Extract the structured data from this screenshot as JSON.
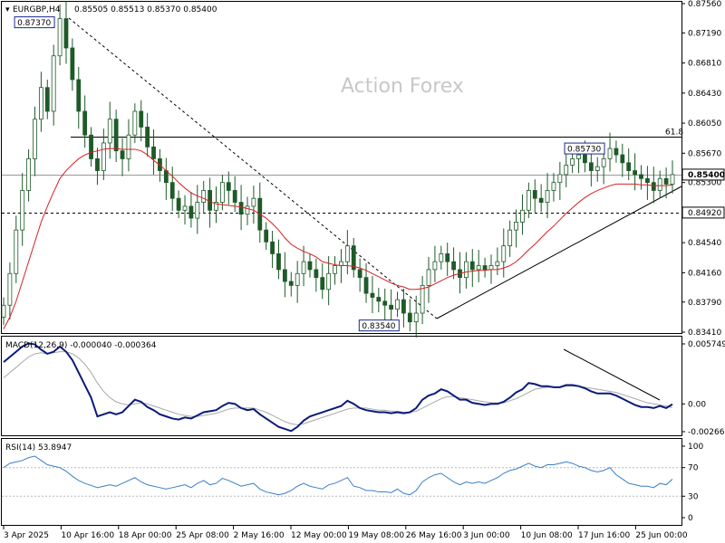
{
  "header": {
    "symbol": "EURGBP,H4",
    "ohlc": "0.85505 0.85513 0.85370 0.85400"
  },
  "watermark": "Action Forex",
  "colors": {
    "candle": "#1e5a28",
    "ma": "#d62020",
    "macd_line": "#0a1a7a",
    "macd_signal": "#a8a8a8",
    "rsi": "#3a7fc6",
    "trendline": "#000000",
    "grid": "#000000"
  },
  "chart_data": [
    {
      "type": "candlestick",
      "panel": "price",
      "symbol": "EURGBP",
      "timeframe": "H4",
      "ylim": [
        0.8341,
        0.8756
      ],
      "y_ticks": [
        "0.87560",
        "0.87190",
        "0.86810",
        "0.86430",
        "0.86050",
        "0.85670",
        "0.85300",
        "0.84920",
        "0.84540",
        "0.84160",
        "0.83790",
        "0.83410"
      ],
      "x_ticks": [
        "3 Apr 2025",
        "10 Apr 16:00",
        "18 Apr 00:00",
        "25 Apr 08:00",
        "2 May 16:00",
        "12 May 00:00",
        "19 May 08:00",
        "26 May 16:00",
        "3 Jun 00:00",
        "10 Jun 08:00",
        "17 Jun 16:00",
        "25 Jun 00:00"
      ],
      "current_price": "0.85400",
      "current_value": 0.854,
      "price_series": [
        0.8375,
        0.8415,
        0.847,
        0.852,
        0.856,
        0.861,
        0.865,
        0.862,
        0.869,
        0.8737,
        0.87,
        0.866,
        0.862,
        0.859,
        0.856,
        0.8545,
        0.858,
        0.861,
        0.857,
        0.856,
        0.859,
        0.862,
        0.86,
        0.8575,
        0.856,
        0.8545,
        0.853,
        0.851,
        0.8495,
        0.85,
        0.8485,
        0.8505,
        0.852,
        0.8495,
        0.8505,
        0.853,
        0.852,
        0.8505,
        0.849,
        0.85,
        0.851,
        0.847,
        0.8455,
        0.844,
        0.842,
        0.8405,
        0.84,
        0.8415,
        0.843,
        0.842,
        0.841,
        0.8395,
        0.8415,
        0.8425,
        0.843,
        0.845,
        0.842,
        0.841,
        0.839,
        0.8385,
        0.838,
        0.8375,
        0.837,
        0.8382,
        0.8365,
        0.8354,
        0.8365,
        0.84,
        0.842,
        0.843,
        0.844,
        0.843,
        0.842,
        0.841,
        0.843,
        0.842,
        0.8425,
        0.842,
        0.8425,
        0.843,
        0.845,
        0.847,
        0.848,
        0.8495,
        0.852,
        0.851,
        0.8505,
        0.852,
        0.853,
        0.854,
        0.8552,
        0.856,
        0.8565,
        0.8555,
        0.8545,
        0.855,
        0.856,
        0.8573,
        0.8565,
        0.8555,
        0.8545,
        0.854,
        0.8535,
        0.853,
        0.852,
        0.8535,
        0.8528,
        0.854
      ],
      "ma_series": [
        0.8345,
        0.836,
        0.838,
        0.8405,
        0.843,
        0.8455,
        0.848,
        0.85,
        0.8518,
        0.8535,
        0.8545,
        0.8553,
        0.856,
        0.8565,
        0.8568,
        0.857,
        0.8572,
        0.8573,
        0.8573,
        0.8572,
        0.8572,
        0.8572,
        0.857,
        0.8565,
        0.8558,
        0.8552,
        0.8545,
        0.8538,
        0.853,
        0.8523,
        0.8517,
        0.8513,
        0.851,
        0.8506,
        0.8503,
        0.8502,
        0.8501,
        0.85,
        0.8499,
        0.8497,
        0.8495,
        0.849,
        0.8485,
        0.8478,
        0.847,
        0.846,
        0.8452,
        0.8447,
        0.8443,
        0.844,
        0.8436,
        0.843,
        0.8428,
        0.8426,
        0.8425,
        0.8425,
        0.8424,
        0.8422,
        0.8419,
        0.8415,
        0.8411,
        0.8407,
        0.8403,
        0.84,
        0.8398,
        0.8395,
        0.8395,
        0.8396,
        0.8398,
        0.8402,
        0.8406,
        0.841,
        0.8413,
        0.8415,
        0.8417,
        0.8418,
        0.8419,
        0.8419,
        0.842,
        0.842,
        0.8422,
        0.8425,
        0.843,
        0.8437,
        0.8445,
        0.8452,
        0.846,
        0.8468,
        0.8475,
        0.8483,
        0.8491,
        0.8498,
        0.8505,
        0.8511,
        0.8516,
        0.852,
        0.8523,
        0.8526,
        0.8528,
        0.8528,
        0.8528,
        0.8528,
        0.8527,
        0.8527,
        0.8526,
        0.8526,
        0.8526,
        0.8527
      ],
      "horizontal_levels": [
        {
          "value": 0.8588,
          "label": "61.8",
          "style": "solid"
        },
        {
          "value": 0.854,
          "label": "0.85400",
          "style": "solid-gray"
        },
        {
          "value": 0.8492,
          "label": "0.84920",
          "style": "dashed"
        }
      ],
      "annotations": [
        {
          "label": "0.87370",
          "value": 0.8737
        },
        {
          "label": "0.85730",
          "value": 0.8573
        },
        {
          "label": "0.83540",
          "value": 0.8354
        }
      ]
    },
    {
      "type": "line",
      "panel": "macd",
      "title": "MACD(12,26,9) -0.000040 -0.000364",
      "ylim": [
        -0.002663,
        0.005749
      ],
      "y_ticks": [
        "0.005749",
        "0.00",
        "-0.002663"
      ],
      "macd_series": [
        0.004,
        0.0045,
        0.005,
        0.0055,
        0.0058,
        0.0057,
        0.0052,
        0.0048,
        0.005,
        0.0055,
        0.005,
        0.0042,
        0.003,
        0.0018,
        0.0006,
        -0.0012,
        -0.001,
        -0.0008,
        -0.001,
        -0.0008,
        -0.0002,
        0.0004,
        0.0002,
        -0.0003,
        -0.0006,
        -0.001,
        -0.0012,
        -0.0014,
        -0.0015,
        -0.0013,
        -0.0014,
        -0.0011,
        -0.0008,
        -0.0007,
        -0.0006,
        -0.0002,
        0.0001,
        0.0,
        -0.0004,
        -0.0006,
        -0.0005,
        -0.001,
        -0.0014,
        -0.0018,
        -0.0022,
        -0.0024,
        -0.0026,
        -0.0022,
        -0.0016,
        -0.0012,
        -0.001,
        -0.0008,
        -0.0006,
        -0.0004,
        -0.0002,
        0.0003,
        0.0,
        -0.0004,
        -0.0006,
        -0.0007,
        -0.0008,
        -0.0008,
        -0.0009,
        -0.0008,
        -0.0009,
        -0.0008,
        -0.0004,
        0.0004,
        0.0008,
        0.001,
        0.0014,
        0.0012,
        0.0008,
        0.0004,
        0.0004,
        0.0001,
        0.0,
        -0.0001,
        0.0,
        0.0,
        0.0002,
        0.0006,
        0.0011,
        0.0014,
        0.002,
        0.0019,
        0.0017,
        0.0017,
        0.0016,
        0.0016,
        0.0018,
        0.0018,
        0.0017,
        0.0015,
        0.0012,
        0.001,
        0.001,
        0.001,
        0.0008,
        0.0005,
        0.0002,
        -0.0001,
        -0.0003,
        -0.0003,
        -0.0004,
        -0.0002,
        -0.0004,
        -4e-05
      ],
      "signal_series": [
        0.0025,
        0.003,
        0.0035,
        0.004,
        0.0045,
        0.0048,
        0.0049,
        0.0048,
        0.0049,
        0.005,
        0.005,
        0.0048,
        0.0044,
        0.0038,
        0.003,
        0.002,
        0.0012,
        0.0006,
        0.0002,
        0.0,
        -0.0001,
        0.0,
        0.0001,
        0.0,
        -0.0002,
        -0.0004,
        -0.0006,
        -0.0008,
        -0.001,
        -0.0011,
        -0.0012,
        -0.0012,
        -0.0011,
        -0.001,
        -0.0009,
        -0.0007,
        -0.0005,
        -0.0004,
        -0.0004,
        -0.0004,
        -0.0004,
        -0.0006,
        -0.0008,
        -0.0011,
        -0.0014,
        -0.0017,
        -0.0019,
        -0.002,
        -0.0019,
        -0.0017,
        -0.0015,
        -0.0013,
        -0.0011,
        -0.0009,
        -0.0007,
        -0.0005,
        -0.0004,
        -0.0004,
        -0.0004,
        -0.0005,
        -0.0006,
        -0.0006,
        -0.0007,
        -0.0007,
        -0.0008,
        -0.0008,
        -0.0007,
        -0.0004,
        -0.0001,
        0.0002,
        0.0005,
        0.0007,
        0.0007,
        0.0006,
        0.0005,
        0.0004,
        0.0003,
        0.0002,
        0.0001,
        0.0001,
        0.0001,
        0.0003,
        0.0005,
        0.0008,
        0.0011,
        0.0014,
        0.0015,
        0.0016,
        0.0016,
        0.0016,
        0.0017,
        0.0017,
        0.0017,
        0.0016,
        0.0015,
        0.0014,
        0.0013,
        0.0012,
        0.0011,
        0.0009,
        0.0007,
        0.0005,
        0.0003,
        0.0001,
        0.0,
        -0.0001,
        -0.0002,
        -0.000364
      ]
    },
    {
      "type": "line",
      "panel": "rsi",
      "title": "RSI(14) 53.8947",
      "ylim": [
        0,
        100
      ],
      "y_ticks": [
        "100",
        "70",
        "30",
        "0"
      ],
      "levels": [
        70,
        30
      ],
      "rsi_series": [
        70,
        76,
        78,
        80,
        84,
        86,
        80,
        74,
        72,
        70,
        65,
        58,
        52,
        48,
        45,
        42,
        44,
        46,
        44,
        48,
        52,
        56,
        50,
        46,
        44,
        42,
        40,
        42,
        44,
        46,
        42,
        48,
        52,
        46,
        48,
        55,
        52,
        48,
        44,
        46,
        48,
        40,
        36,
        34,
        32,
        34,
        38,
        44,
        48,
        44,
        42,
        40,
        46,
        48,
        52,
        56,
        44,
        42,
        38,
        38,
        36,
        36,
        35,
        40,
        34,
        32,
        38,
        50,
        56,
        60,
        62,
        56,
        50,
        46,
        50,
        48,
        50,
        48,
        52,
        56,
        62,
        66,
        68,
        72,
        76,
        72,
        70,
        74,
        74,
        76,
        78,
        76,
        72,
        70,
        66,
        64,
        66,
        70,
        60,
        54,
        48,
        46,
        44,
        44,
        42,
        48,
        46,
        53.8947
      ]
    }
  ]
}
